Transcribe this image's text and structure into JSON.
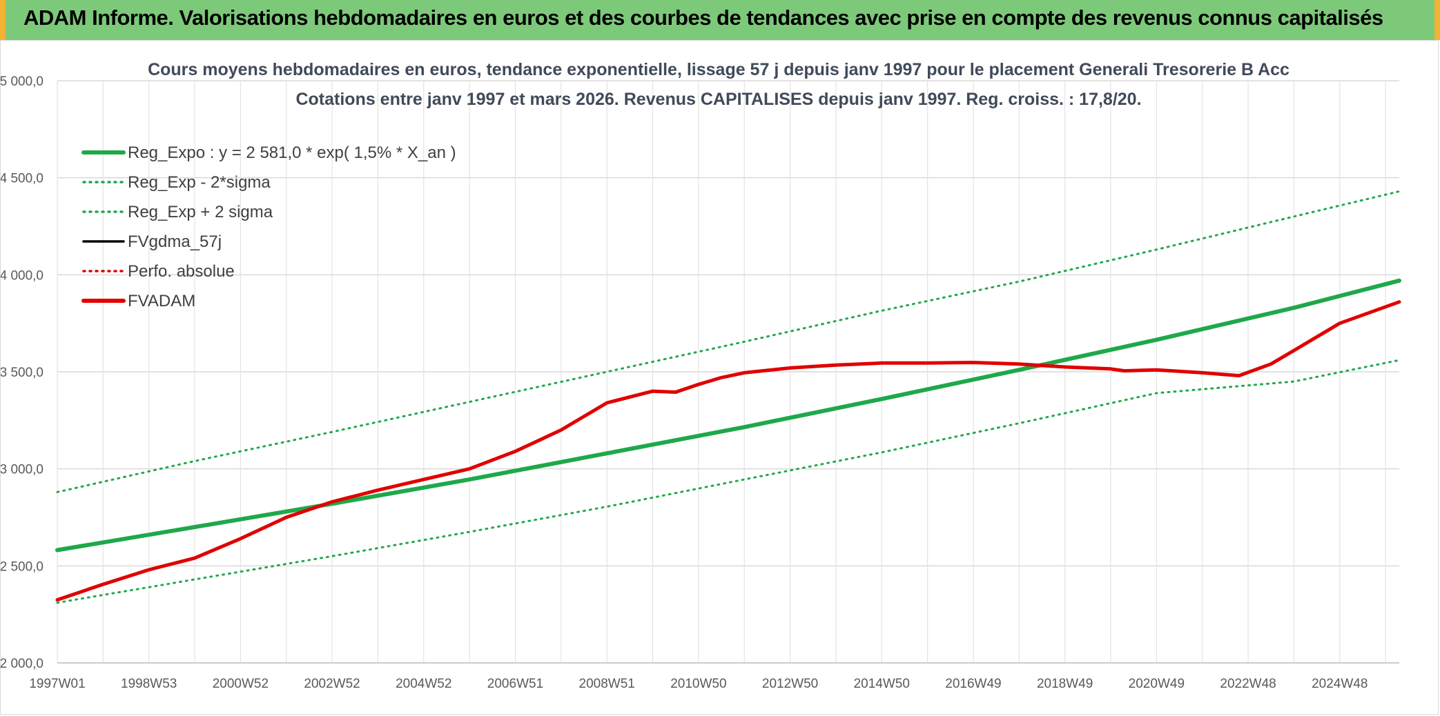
{
  "banner": {
    "title": "ADAM Informe. Valorisations hebdomadaires en euros et des courbes de tendances avec prise en compte des revenus connus capitalisés",
    "background": "#7dc97a",
    "edge_color": "#f2b233"
  },
  "chart_data": {
    "type": "line",
    "title": "Cours moyens hebdomadaires en euros, tendance exponentielle, lissage 57 j depuis janv 1997 pour le placement Generali Tresorerie B Acc",
    "subtitle": "Cotations entre janv 1997 et mars 2026. Revenus CAPITALISES depuis janv 1997. Reg. croiss. : 17,8/20.",
    "xlabel": "",
    "ylabel": "",
    "ylim": [
      2000,
      5000
    ],
    "xlim": [
      1997.0,
      2026.3
    ],
    "yticks": [
      "2 000,0",
      "2 500,0",
      "3 000,0",
      "3 500,0",
      "4 000,0",
      "4 500,0",
      "5 000,0"
    ],
    "ytick_values": [
      2000,
      2500,
      3000,
      3500,
      4000,
      4500,
      5000
    ],
    "xticks": [
      "1997W01",
      "1998W53",
      "2000W52",
      "2002W52",
      "2004W52",
      "2006W51",
      "2008W51",
      "2010W50",
      "2012W50",
      "2014W50",
      "2016W49",
      "2018W49",
      "2020W49",
      "2022W48",
      "2024W48"
    ],
    "xtick_values": [
      1997.0,
      1999.0,
      2001.0,
      2003.0,
      2005.0,
      2007.0,
      2009.0,
      2011.0,
      2013.0,
      2015.0,
      2017.0,
      2019.0,
      2021.0,
      2023.0,
      2025.0
    ],
    "grid": true,
    "legend_position": "top-left",
    "series": [
      {
        "name": "Reg_Expo : y = 2 581,0 * exp( 1,5% *  X_an )",
        "color": "#1fa84a",
        "style": "solid",
        "width": 6,
        "x": [
          1997.0,
          2000.0,
          2003.0,
          2006.0,
          2009.0,
          2012.0,
          2015.0,
          2018.0,
          2021.0,
          2024.0,
          2026.3
        ],
        "values": [
          2581,
          2700,
          2820,
          2945,
          3080,
          3215,
          3360,
          3510,
          3665,
          3830,
          3970
        ]
      },
      {
        "name": "Reg_Exp - 2*sigma",
        "color": "#1fa84a",
        "style": "dotted",
        "width": 3,
        "x": [
          1997.0,
          2000.0,
          2003.0,
          2006.0,
          2009.0,
          2012.0,
          2015.0,
          2018.0,
          2021.0,
          2024.0,
          2026.3
        ],
        "values": [
          2310,
          2430,
          2550,
          2675,
          2805,
          2945,
          3085,
          3235,
          3390,
          3450,
          3560
        ]
      },
      {
        "name": "Reg_Exp + 2 sigma",
        "color": "#1fa84a",
        "style": "dotted",
        "width": 3,
        "x": [
          1997.0,
          2000.0,
          2003.0,
          2006.0,
          2009.0,
          2012.0,
          2015.0,
          2018.0,
          2021.0,
          2024.0,
          2026.3
        ],
        "values": [
          2880,
          3040,
          3190,
          3345,
          3500,
          3655,
          3815,
          3965,
          4130,
          4300,
          4430
        ]
      },
      {
        "name": "FVgdma_57j",
        "color": "#000000",
        "style": "solid",
        "width": 3,
        "x": [],
        "values": []
      },
      {
        "name": "Perfo. absolue",
        "color": "#e00000",
        "style": "dotted",
        "width": 3,
        "x": [],
        "values": []
      },
      {
        "name": "FVADAM",
        "color": "#e00000",
        "style": "solid",
        "width": 5,
        "x": [
          1997.0,
          1998.0,
          1999.0,
          2000.0,
          2001.0,
          2002.0,
          2003.0,
          2004.0,
          2005.0,
          2006.0,
          2007.0,
          2008.0,
          2009.0,
          2010.0,
          2010.5,
          2011.0,
          2011.5,
          2012.0,
          2013.0,
          2014.0,
          2015.0,
          2016.0,
          2017.0,
          2018.0,
          2019.0,
          2020.0,
          2020.3,
          2021.0,
          2022.0,
          2022.8,
          2023.5,
          2024.0,
          2025.0,
          2026.3
        ],
        "values": [
          2325,
          2405,
          2480,
          2540,
          2640,
          2750,
          2830,
          2890,
          2945,
          3000,
          3090,
          3200,
          3340,
          3400,
          3395,
          3435,
          3470,
          3495,
          3520,
          3535,
          3545,
          3545,
          3548,
          3540,
          3525,
          3515,
          3505,
          3510,
          3495,
          3480,
          3540,
          3610,
          3750,
          3860
        ]
      }
    ]
  }
}
